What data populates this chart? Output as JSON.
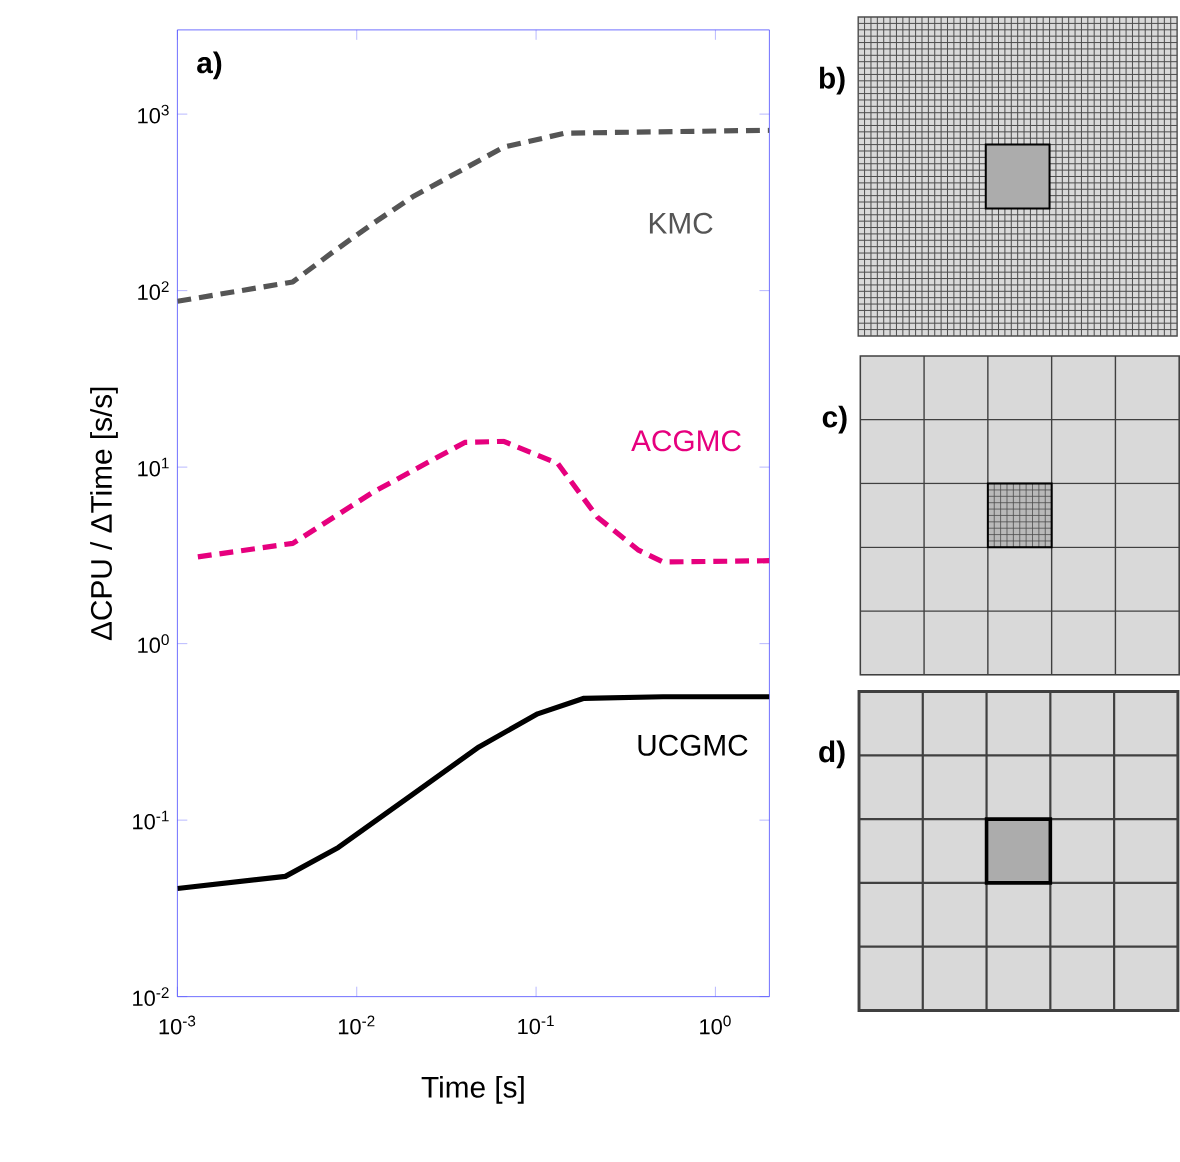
{
  "chart_data": {
    "type": "line",
    "xlabel": "Time [s]",
    "ylabel": "ΔCPU / ΔTime [s/s]",
    "log": "xy",
    "grid": false,
    "xlim": [
      0.001,
      2
    ],
    "ylim": [
      0.01,
      3000
    ],
    "xticks": [
      {
        "value": 0.001,
        "label": "10$^{-3}$"
      },
      {
        "value": 0.01,
        "label": "10$^{-2}$"
      },
      {
        "value": 0.1,
        "label": "10$^{-1}$"
      },
      {
        "value": 1,
        "label": "10$^{0}$"
      }
    ],
    "yticks": [
      {
        "value": 0.01,
        "label": "10$^{-2}$"
      },
      {
        "value": 0.1,
        "label": "10$^{-1}$"
      },
      {
        "value": 1,
        "label": "10$^{0}$"
      },
      {
        "value": 10,
        "label": "10$^{1}$"
      },
      {
        "value": 100,
        "label": "10$^{2}$"
      },
      {
        "value": 1000,
        "label": "10$^{3}$"
      }
    ],
    "series": [
      {
        "name": "KMC",
        "color": "#555555",
        "line_style": "dashed",
        "x": [
          0.001,
          0.0044,
          0.0074,
          0.0123,
          0.0205,
          0.066,
          0.145,
          2
        ],
        "values": [
          87,
          112,
          166,
          240,
          340,
          650,
          780,
          810
        ]
      },
      {
        "name": "ACGMC",
        "color": "#e6007e",
        "line_style": "dashed",
        "x": [
          0.0013,
          0.0044,
          0.0123,
          0.04,
          0.066,
          0.132,
          0.22,
          0.37,
          0.51,
          2
        ],
        "values": [
          3.1,
          3.7,
          7.2,
          13.8,
          14,
          10.5,
          5.2,
          3.4,
          2.9,
          2.95
        ]
      },
      {
        "name": "UCGMC",
        "color": "#000000",
        "line_style": "solid",
        "x": [
          0.001,
          0.004,
          0.0079,
          0.0205,
          0.048,
          0.102,
          0.185,
          0.51,
          2
        ],
        "values": [
          0.041,
          0.048,
          0.07,
          0.14,
          0.26,
          0.4,
          0.49,
          0.5,
          0.5
        ]
      }
    ],
    "annotations": [
      "a)",
      "b)",
      "c)",
      "d)"
    ]
  }
}
